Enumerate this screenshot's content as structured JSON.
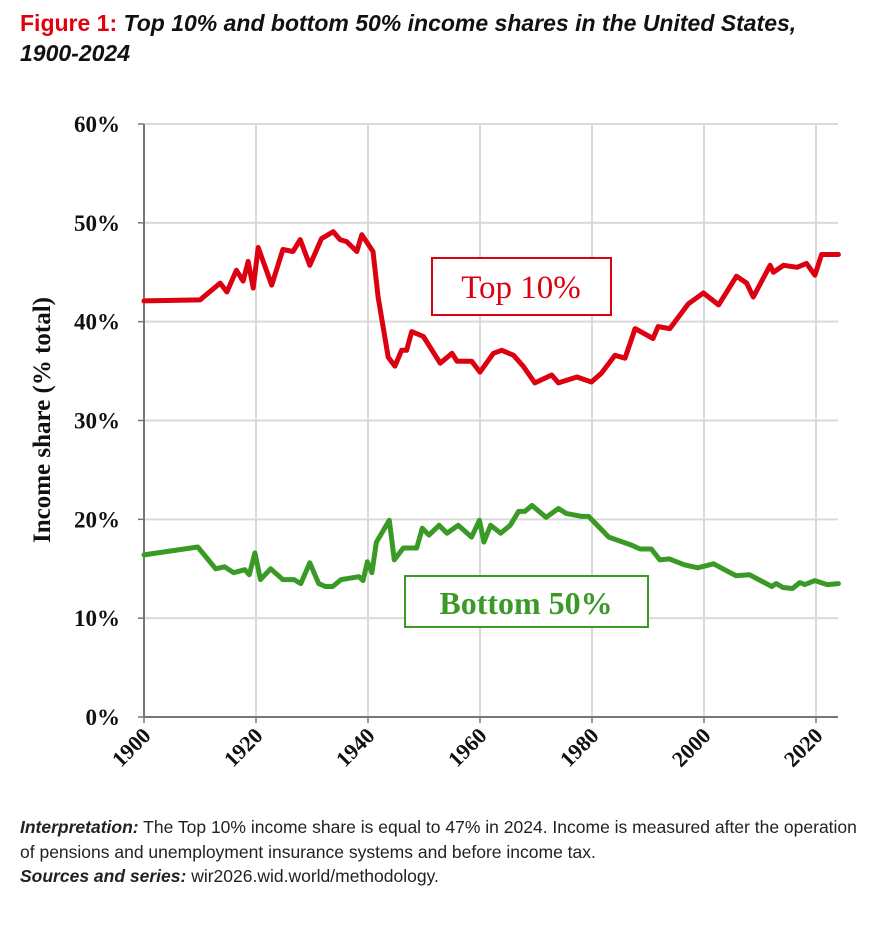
{
  "title": {
    "figure_label": "Figure 1:",
    "text": "Top 10% and bottom 50% income shares in the United States, 1900-2024"
  },
  "colors": {
    "top10": "#dc0010",
    "bottom50": "#3a9a26",
    "grid": "#d9d9d9",
    "axis": "#777777"
  },
  "chart_data": {
    "type": "line",
    "title": "Top 10% and bottom 50% income shares in the United States, 1900-2024",
    "xlabel": "",
    "ylabel": "Income share (% total)",
    "xlim": [
      1900,
      2024
    ],
    "ylim": [
      0,
      60
    ],
    "xticks": [
      1900,
      1920,
      1940,
      1960,
      1980,
      2000,
      2020
    ],
    "xtick_labels": [
      "1900",
      "1920",
      "1940",
      "1960",
      "1980",
      "2000",
      "2020"
    ],
    "yticks": [
      0,
      10,
      20,
      30,
      40,
      50,
      60
    ],
    "ytick_labels": [
      "0%",
      "10%",
      "20%",
      "30%",
      "40%",
      "50%",
      "60%"
    ],
    "grid": true,
    "series": [
      {
        "name": "Top 10%",
        "color_key": "top10",
        "x": [
          1900,
          1910,
          1913.6,
          1914.8,
          1916.5,
          1917.7,
          1918.6,
          1919.5,
          1920.4,
          1922.8,
          1924.8,
          1926.6,
          1927.9,
          1929.6,
          1931.7,
          1933.8,
          1935,
          1936.2,
          1938,
          1938.9,
          1940.9,
          1941.8,
          1943.6,
          1944.8,
          1946,
          1946.9,
          1947.8,
          1949.9,
          1952.9,
          1955,
          1955.9,
          1958.5,
          1960,
          1962.4,
          1963.9,
          1966,
          1967.7,
          1969.8,
          1972.8,
          1974,
          1977.3,
          1979.9,
          1981.7,
          1984.1,
          1985.9,
          1987.7,
          1990.9,
          1991.8,
          1993.9,
          1997.2,
          1999.9,
          2002.6,
          2005.8,
          2007.6,
          2008.8,
          2011.8,
          2012.4,
          2014.2,
          2016.6,
          2018.3,
          2019.8,
          2021,
          2024
        ],
        "y": [
          42.1,
          42.2,
          43.9,
          43.0,
          45.2,
          44.1,
          46.1,
          43.4,
          47.5,
          43.7,
          47.3,
          47.1,
          48.3,
          45.7,
          48.4,
          49.1,
          48.3,
          48.1,
          47.1,
          48.8,
          47.1,
          42.5,
          36.4,
          35.5,
          37.1,
          37.1,
          39.0,
          38.5,
          35.8,
          36.8,
          36.0,
          36.0,
          34.9,
          36.8,
          37.1,
          36.6,
          35.5,
          33.8,
          34.6,
          33.8,
          34.4,
          33.9,
          34.8,
          36.6,
          36.3,
          39.3,
          38.3,
          39.5,
          39.3,
          41.8,
          42.9,
          41.7,
          44.6,
          43.9,
          42.5,
          45.7,
          45.0,
          45.7,
          45.5,
          45.9,
          44.7,
          46.8,
          46.8
        ]
      },
      {
        "name": "Bottom 50%",
        "color_key": "bottom50",
        "x": [
          1900,
          1909.6,
          1912.8,
          1914.4,
          1916,
          1918,
          1918.8,
          1919.8,
          1920.8,
          1922.6,
          1924.8,
          1926.8,
          1928,
          1929.6,
          1931.2,
          1932.4,
          1933.7,
          1935.2,
          1938.4,
          1939.1,
          1939.9,
          1940.7,
          1941.5,
          1943.8,
          1944.7,
          1946.3,
          1948.7,
          1949.7,
          1950.9,
          1952.7,
          1954.1,
          1956.1,
          1958.5,
          1959.9,
          1960.7,
          1961.9,
          1963.7,
          1965.4,
          1966.9,
          1968,
          1969.3,
          1971.8,
          1974,
          1975.4,
          1978.2,
          1979.4,
          1983,
          1987,
          1988.6,
          1990.6,
          1992.1,
          1993.8,
          1996.5,
          1998.9,
          2001.7,
          2005.7,
          2008.1,
          2012.1,
          2012.9,
          2014.1,
          2015.8,
          2017.1,
          2018,
          2019.8,
          2022,
          2024
        ],
        "y": [
          16.4,
          17.2,
          15.0,
          15.2,
          14.6,
          14.9,
          14.4,
          16.6,
          13.9,
          15.0,
          13.9,
          13.9,
          13.5,
          15.6,
          13.5,
          13.2,
          13.2,
          13.9,
          14.2,
          13.8,
          15.7,
          14.6,
          17.7,
          19.9,
          15.9,
          17.1,
          17.1,
          19.1,
          18.4,
          19.4,
          18.6,
          19.4,
          18.2,
          19.9,
          17.7,
          19.4,
          18.6,
          19.4,
          20.8,
          20.8,
          21.4,
          20.2,
          21.1,
          20.6,
          20.3,
          20.3,
          18.2,
          17.4,
          17.0,
          17.0,
          15.9,
          16.0,
          15.4,
          15.1,
          15.5,
          14.3,
          14.4,
          13.2,
          13.5,
          13.1,
          13.0,
          13.6,
          13.4,
          13.8,
          13.4,
          13.5
        ]
      }
    ],
    "annotations": [
      {
        "text": "Top 10%",
        "series": "Top 10%"
      },
      {
        "text": "Bottom 50%",
        "series": "Bottom 50%"
      }
    ]
  },
  "footer": {
    "interpretation_label": "Interpretation:",
    "interpretation_text": " The Top 10% income share is equal to 47% in 2024. Income is measured after the operation of pensions and unemployment insurance systems and before income tax.",
    "sources_label": "Sources and series:",
    "sources_text": " wir2026.wid.world/methodology."
  }
}
